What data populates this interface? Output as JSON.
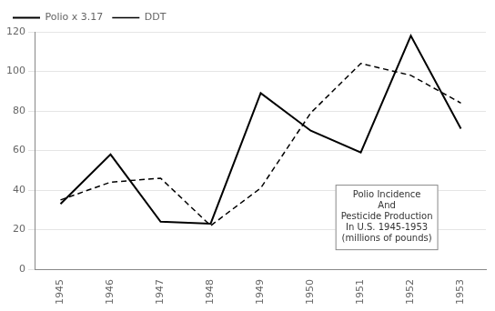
{
  "chart_data": {
    "type": "line",
    "x": [
      1945,
      1946,
      1947,
      1948,
      1949,
      1950,
      1951,
      1952,
      1953
    ],
    "xlim": [
      1944.5,
      1953.5
    ],
    "xticks": [
      1945,
      1946,
      1947,
      1948,
      1949,
      1950,
      1951,
      1952,
      1953
    ],
    "ylim": [
      0,
      120
    ],
    "yticks": [
      0,
      20,
      40,
      60,
      80,
      100,
      120
    ],
    "series": [
      {
        "name": "Polio x 3.17",
        "color": "#000000",
        "line_style": "solid",
        "values": [
          33,
          58,
          24,
          23,
          89,
          70,
          59,
          118,
          71
        ]
      },
      {
        "name": "DDT",
        "color": "#000000",
        "line_style": "dashed",
        "values": [
          35,
          44,
          46,
          22,
          41,
          79,
          104,
          98,
          84
        ]
      }
    ],
    "grid": "y",
    "legend": "upper left",
    "annotation": "Polio Incidence\nAnd\nPesticide Production\nIn U.S. 1945-1953\n(millions of pounds)"
  }
}
